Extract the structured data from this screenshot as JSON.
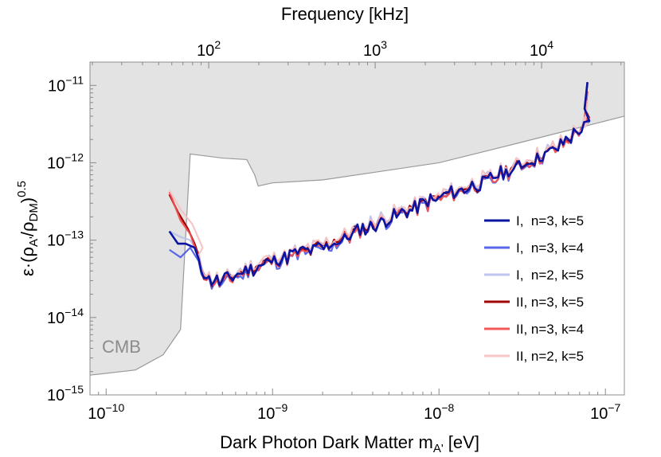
{
  "chart_data": {
    "type": "line",
    "title": "",
    "top_axis_label": "Frequency [kHz]",
    "top_ticks": [
      {
        "value": 100,
        "base": "10",
        "exp": "2"
      },
      {
        "value": 1000,
        "base": "10",
        "exp": "3"
      },
      {
        "value": 10000,
        "base": "10",
        "exp": "4"
      }
    ],
    "xlabel": "Dark Photon Dark Matter m_A' [eV]",
    "xlabel_main": "Dark Photon Dark Matter m",
    "xlabel_sub": "A'",
    "xlabel_unit": " [eV]",
    "ylabel": "ε·(ρA'/ρDM)^0.5",
    "x_scale": "log",
    "y_scale": "log",
    "xlim": [
      8e-11,
      1.3e-07
    ],
    "ylim": [
      1e-15,
      2e-11
    ],
    "x_ticks": [
      {
        "value": 1e-10,
        "base": "10",
        "exp": "−10"
      },
      {
        "value": 1e-09,
        "base": "10",
        "exp": "−9"
      },
      {
        "value": 1e-08,
        "base": "10",
        "exp": "−8"
      },
      {
        "value": 1e-07,
        "base": "10",
        "exp": "−7"
      }
    ],
    "y_ticks": [
      {
        "value": 1e-15,
        "base": "10",
        "exp": "−15"
      },
      {
        "value": 1e-14,
        "base": "10",
        "exp": "−14"
      },
      {
        "value": 1e-13,
        "base": "10",
        "exp": "−13"
      },
      {
        "value": 1e-12,
        "base": "10",
        "exp": "−12"
      },
      {
        "value": 1e-11,
        "base": "10",
        "exp": "−11"
      }
    ],
    "excluded_region": {
      "label": "CMB",
      "color": "#e3e3e3",
      "edge_color": "#9a9a9a",
      "boundary": [
        [
          8e-11,
          1.8e-15
        ],
        [
          1.5e-10,
          2.1e-15
        ],
        [
          2.2e-10,
          3.3e-15
        ],
        [
          2.8e-10,
          7e-15
        ],
        [
          3.2e-10,
          1.3e-12
        ],
        [
          5e-10,
          1.15e-12
        ],
        [
          7e-10,
          1.1e-12
        ],
        [
          7.8e-10,
          7e-13
        ],
        [
          8.2e-10,
          5e-13
        ],
        [
          1e-09,
          5.5e-13
        ],
        [
          2e-09,
          6e-13
        ],
        [
          1e-08,
          1e-12
        ],
        [
          3e-08,
          1.8e-12
        ],
        [
          1.3e-07,
          4e-12
        ]
      ]
    },
    "legend_position": "right",
    "series": [
      {
        "name": "I,  n=3, k=5",
        "color": "#0a14a0",
        "width": 2.6,
        "opacity": 1.0,
        "seed": 1,
        "offset": 0.0,
        "start": [
          [
            2.4e-10,
            1.3e-13
          ],
          [
            2.7e-10,
            9e-14
          ],
          [
            3e-10,
            9e-14
          ],
          [
            3.4e-10,
            8e-14
          ]
        ]
      },
      {
        "name": "I,  n=3, k=4",
        "color": "#5060e6",
        "width": 2.2,
        "opacity": 0.95,
        "seed": 2,
        "offset": -0.02,
        "start": [
          [
            2.4e-10,
            7.5e-14
          ],
          [
            2.8e-10,
            6e-14
          ],
          [
            3.2e-10,
            8e-14
          ]
        ]
      },
      {
        "name": "I,  n=2, k=5",
        "color": "#b8c0ea",
        "width": 2.2,
        "opacity": 0.9,
        "seed": 3,
        "offset": 0.03,
        "start": [
          [
            2.4e-10,
            1.3e-13
          ],
          [
            2.8e-10,
            1.1e-13
          ],
          [
            3.2e-10,
            1e-13
          ]
        ]
      },
      {
        "name": "II, n=3, k=5",
        "color": "#a00000",
        "width": 2.4,
        "opacity": 1.0,
        "seed": 4,
        "offset": 0.01,
        "start": [
          [
            2.4e-10,
            3.9e-13
          ],
          [
            2.7e-10,
            2.3e-13
          ],
          [
            3.1e-10,
            1.4e-13
          ],
          [
            3.4e-10,
            9e-14
          ]
        ]
      },
      {
        "name": "II, n=3, k=4",
        "color": "#f25050",
        "width": 2.2,
        "opacity": 0.95,
        "seed": 5,
        "offset": -0.01,
        "start": [
          [
            2.4e-10,
            4.2e-13
          ],
          [
            2.8e-10,
            1.8e-13
          ],
          [
            3.2e-10,
            1.2e-13
          ]
        ]
      },
      {
        "name": "II, n=2, k=5",
        "color": "#f6c0c0",
        "width": 2.2,
        "opacity": 0.9,
        "seed": 6,
        "offset": 0.04,
        "start": [
          [
            2.4e-10,
            4.4e-13
          ],
          [
            2.8e-10,
            2.5e-13
          ],
          [
            3.3e-10,
            1.6e-13
          ],
          [
            3.8e-10,
            8e-14
          ]
        ]
      }
    ],
    "trend": [
      [
        3.6e-10,
        5e-14
      ],
      [
        4.2e-10,
        3e-14
      ],
      [
        5e-10,
        2.9e-14
      ],
      [
        6e-10,
        3.5e-14
      ],
      [
        8e-10,
        4.5e-14
      ],
      [
        1e-09,
        5.5e-14
      ],
      [
        2e-09,
        8e-14
      ],
      [
        4e-09,
        1.6e-13
      ],
      [
        1e-08,
        3.5e-13
      ],
      [
        2e-08,
        6e-13
      ],
      [
        5e-08,
        1.5e-12
      ],
      [
        8e-08,
        3.3e-12
      ]
    ],
    "noise_amplitude_decades": 0.09,
    "upturn": [
      [
        7.5e-08,
        5e-12
      ],
      [
        7.8e-08,
        1.1e-11
      ]
    ]
  }
}
